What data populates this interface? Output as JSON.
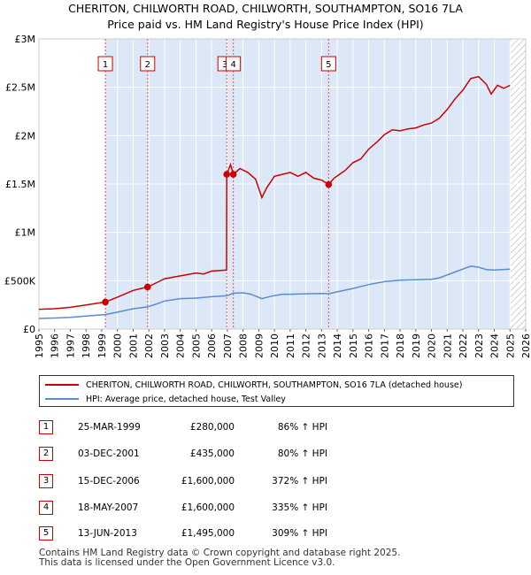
{
  "header": {
    "title": "CHERITON, CHILWORTH ROAD, CHILWORTH, SOUTHAMPTON, SO16 7LA",
    "subtitle": "Price paid vs. HM Land Registry's House Price Index (HPI)"
  },
  "colors": {
    "property": "#cc0000",
    "hpi": "#5b8ccc",
    "shade": "#dce7f7",
    "grid": "#ffffff",
    "vline": "#e05050"
  },
  "chart_data": {
    "type": "line",
    "xlabel": "",
    "ylabel": "",
    "xlim": [
      1995,
      2026
    ],
    "ylim": [
      0,
      3000000
    ],
    "x_ticks": [
      1995,
      1996,
      1997,
      1998,
      1999,
      2000,
      2001,
      2002,
      2003,
      2004,
      2005,
      2006,
      2007,
      2008,
      2009,
      2010,
      2011,
      2012,
      2013,
      2014,
      2015,
      2016,
      2017,
      2018,
      2019,
      2020,
      2021,
      2022,
      2023,
      2024,
      2025,
      2026
    ],
    "y_ticks": [
      {
        "value": 0,
        "label": "£0"
      },
      {
        "value": 500000,
        "label": "£500K"
      },
      {
        "value": 1000000,
        "label": "£1M"
      },
      {
        "value": 1500000,
        "label": "£1.5M"
      },
      {
        "value": 2000000,
        "label": "£2M"
      },
      {
        "value": 2500000,
        "label": "£2.5M"
      },
      {
        "value": 3000000,
        "label": "£3M"
      }
    ],
    "shaded_from": 1999.23,
    "hatched_from": 2025.0,
    "series": [
      {
        "name": "CHERITON, CHILWORTH ROAD, CHILWORTH, SOUTHAMPTON, SO16 7LA (detached house)",
        "color": "#cc0000",
        "points": [
          [
            1995.0,
            205000
          ],
          [
            1996.0,
            210000
          ],
          [
            1997.0,
            225000
          ],
          [
            1998.0,
            250000
          ],
          [
            1999.23,
            280000
          ],
          [
            2000.0,
            330000
          ],
          [
            2001.0,
            400000
          ],
          [
            2001.92,
            435000
          ],
          [
            2002.5,
            480000
          ],
          [
            2003.0,
            520000
          ],
          [
            2004.0,
            550000
          ],
          [
            2005.0,
            580000
          ],
          [
            2005.5,
            570000
          ],
          [
            2006.0,
            600000
          ],
          [
            2006.95,
            610000
          ],
          [
            2006.96,
            1600000
          ],
          [
            2007.2,
            1700000
          ],
          [
            2007.38,
            1600000
          ],
          [
            2007.8,
            1660000
          ],
          [
            2008.3,
            1620000
          ],
          [
            2008.8,
            1550000
          ],
          [
            2009.2,
            1360000
          ],
          [
            2009.5,
            1460000
          ],
          [
            2010.0,
            1580000
          ],
          [
            2010.5,
            1600000
          ],
          [
            2011.0,
            1620000
          ],
          [
            2011.5,
            1580000
          ],
          [
            2012.0,
            1620000
          ],
          [
            2012.5,
            1560000
          ],
          [
            2013.0,
            1540000
          ],
          [
            2013.45,
            1495000
          ],
          [
            2013.8,
            1560000
          ],
          [
            2014.5,
            1640000
          ],
          [
            2015.0,
            1720000
          ],
          [
            2015.5,
            1760000
          ],
          [
            2016.0,
            1860000
          ],
          [
            2016.5,
            1930000
          ],
          [
            2017.0,
            2010000
          ],
          [
            2017.5,
            2060000
          ],
          [
            2018.0,
            2050000
          ],
          [
            2018.5,
            2070000
          ],
          [
            2019.0,
            2080000
          ],
          [
            2019.5,
            2110000
          ],
          [
            2020.0,
            2130000
          ],
          [
            2020.5,
            2180000
          ],
          [
            2021.0,
            2270000
          ],
          [
            2021.5,
            2380000
          ],
          [
            2022.0,
            2470000
          ],
          [
            2022.5,
            2590000
          ],
          [
            2023.0,
            2610000
          ],
          [
            2023.5,
            2530000
          ],
          [
            2023.8,
            2430000
          ],
          [
            2024.2,
            2520000
          ],
          [
            2024.6,
            2490000
          ],
          [
            2025.0,
            2520000
          ]
        ]
      },
      {
        "name": "HPI: Average price, detached house, Test Valley",
        "color": "#5b8ccc",
        "points": [
          [
            1995.0,
            110000
          ],
          [
            1996.0,
            114000
          ],
          [
            1997.0,
            122000
          ],
          [
            1998.0,
            135000
          ],
          [
            1999.23,
            150000
          ],
          [
            2000.0,
            175000
          ],
          [
            2001.0,
            210000
          ],
          [
            2001.92,
            230000
          ],
          [
            2002.5,
            260000
          ],
          [
            2003.0,
            290000
          ],
          [
            2004.0,
            315000
          ],
          [
            2005.0,
            320000
          ],
          [
            2006.0,
            335000
          ],
          [
            2006.96,
            345000
          ],
          [
            2007.38,
            370000
          ],
          [
            2008.0,
            375000
          ],
          [
            2008.5,
            360000
          ],
          [
            2009.2,
            315000
          ],
          [
            2009.8,
            340000
          ],
          [
            2010.5,
            360000
          ],
          [
            2011.0,
            360000
          ],
          [
            2012.0,
            365000
          ],
          [
            2013.0,
            368000
          ],
          [
            2013.45,
            365000
          ],
          [
            2014.0,
            385000
          ],
          [
            2015.0,
            420000
          ],
          [
            2016.0,
            460000
          ],
          [
            2017.0,
            490000
          ],
          [
            2018.0,
            505000
          ],
          [
            2019.0,
            510000
          ],
          [
            2020.0,
            515000
          ],
          [
            2020.5,
            530000
          ],
          [
            2021.0,
            560000
          ],
          [
            2021.5,
            590000
          ],
          [
            2022.0,
            620000
          ],
          [
            2022.5,
            650000
          ],
          [
            2023.0,
            640000
          ],
          [
            2023.5,
            615000
          ],
          [
            2024.0,
            610000
          ],
          [
            2024.5,
            615000
          ],
          [
            2025.0,
            620000
          ]
        ]
      }
    ],
    "sales": [
      {
        "label": "1",
        "x": 1999.23,
        "y": 280000
      },
      {
        "label": "2",
        "x": 2001.92,
        "y": 435000
      },
      {
        "label": "3",
        "x": 2006.96,
        "y": 1600000
      },
      {
        "label": "4",
        "x": 2007.38,
        "y": 1600000
      },
      {
        "label": "5",
        "x": 2013.45,
        "y": 1495000
      }
    ]
  },
  "legend": {
    "property_label": "CHERITON, CHILWORTH ROAD, CHILWORTH, SOUTHAMPTON, SO16 7LA (detached house)",
    "hpi_label": "HPI: Average price, detached house, Test Valley"
  },
  "transactions": [
    {
      "num": "1",
      "date": "25-MAR-1999",
      "price": "£280,000",
      "hpi": "86% ↑ HPI"
    },
    {
      "num": "2",
      "date": "03-DEC-2001",
      "price": "£435,000",
      "hpi": "80% ↑ HPI"
    },
    {
      "num": "3",
      "date": "15-DEC-2006",
      "price": "£1,600,000",
      "hpi": "372% ↑ HPI"
    },
    {
      "num": "4",
      "date": "18-MAY-2007",
      "price": "£1,600,000",
      "hpi": "335% ↑ HPI"
    },
    {
      "num": "5",
      "date": "13-JUN-2013",
      "price": "£1,495,000",
      "hpi": "309% ↑ HPI"
    }
  ],
  "footer": {
    "line1": "Contains HM Land Registry data © Crown copyright and database right 2025.",
    "line2": "This data is licensed under the Open Government Licence v3.0."
  }
}
